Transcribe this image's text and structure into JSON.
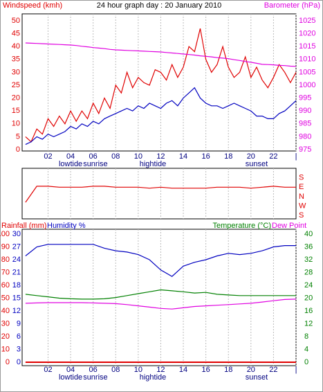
{
  "chart_data": [
    {
      "type": "line",
      "title": "24 hour graph day : 20 January 2010",
      "ylabel": "Windspeed (kmh)",
      "y2label": "Barometer (hPa)",
      "ycolor": "#e00000",
      "y2color": "#e000e0",
      "x": [
        0,
        0.5,
        1,
        1.5,
        2,
        2.5,
        3,
        3.5,
        4,
        4.5,
        5,
        5.5,
        6,
        6.5,
        7,
        7.5,
        8,
        8.5,
        9,
        9.5,
        10,
        10.5,
        11,
        11.5,
        12,
        12.5,
        13,
        13.5,
        14,
        14.5,
        15,
        15.5,
        16,
        16.5,
        17,
        17.5,
        18,
        18.5,
        19,
        19.5,
        20,
        20.5,
        21,
        21.5,
        22,
        22.5,
        23,
        23.5,
        24
      ],
      "xlim": [
        -0.3,
        24
      ],
      "xticks": [
        {
          "value": 2,
          "label": "02"
        },
        {
          "value": 4,
          "label": "04"
        },
        {
          "value": 6,
          "label": "06"
        },
        {
          "value": 8,
          "label": "08"
        },
        {
          "value": 10,
          "label": "10"
        },
        {
          "value": 12,
          "label": "12"
        },
        {
          "value": 14,
          "label": "14"
        },
        {
          "value": 16,
          "label": "16"
        },
        {
          "value": 18,
          "label": "18"
        },
        {
          "value": 20,
          "label": "20"
        },
        {
          "value": 22,
          "label": "22"
        },
        {
          "value": 24,
          "label": "|"
        }
      ],
      "ylim": [
        0,
        50
      ],
      "yticks": [
        0,
        5,
        10,
        15,
        20,
        25,
        30,
        35,
        40,
        45,
        50
      ],
      "y2lim": [
        975,
        1025
      ],
      "y2ticks": [
        975,
        980,
        985,
        990,
        995,
        1000,
        1005,
        1010,
        1015,
        1020,
        1025
      ],
      "grid": true,
      "annotations": [
        {
          "text": "lowtide",
          "x": 4
        },
        {
          "text": "sunrise",
          "x": 6.2
        },
        {
          "text": "hightide",
          "x": 11.3
        },
        {
          "text": "sunset",
          "x": 20.5
        }
      ],
      "series": [
        {
          "color": "#e00000",
          "values": [
            5,
            3,
            8,
            6,
            12,
            9,
            13,
            10,
            15,
            11,
            15,
            12,
            18,
            14,
            20,
            16,
            25,
            22,
            30,
            24,
            28,
            26,
            25,
            31,
            30,
            27,
            33,
            28,
            32,
            40,
            38,
            47,
            35,
            30,
            33,
            40,
            32,
            28,
            30,
            36,
            28,
            32,
            27,
            24,
            28,
            33,
            30,
            26,
            30
          ]
        },
        {
          "color": "#0000c0",
          "values": [
            2,
            3,
            5,
            4,
            6,
            5,
            6,
            7,
            9,
            8,
            10,
            9,
            11,
            10,
            12,
            13,
            14,
            15,
            16,
            15,
            17,
            16,
            18,
            17,
            16,
            18,
            19,
            17,
            20,
            22,
            24,
            20,
            18,
            17,
            17,
            16,
            17,
            18,
            17,
            16,
            15,
            13,
            13,
            12,
            12,
            14,
            15,
            17,
            19
          ]
        },
        {
          "color": "#e000e0",
          "axis": "y2",
          "values": [
            1016.4,
            1016.3,
            1016.2,
            1016.1,
            1016.0,
            1015.9,
            1015.8,
            1015.7,
            1015.6,
            1015.4,
            1015.1,
            1014.9,
            1014.6,
            1014.4,
            1014.2,
            1013.9,
            1013.7,
            1013.6,
            1013.5,
            1013.4,
            1013.3,
            1013.2,
            1013.1,
            1013.0,
            1012.9,
            1012.7,
            1012.5,
            1012.3,
            1012.1,
            1011.9,
            1011.7,
            1011.4,
            1011.2,
            1011.0,
            1010.7,
            1010.5,
            1010.3,
            1009.9,
            1009.6,
            1009.2,
            1008.9,
            1008.5,
            1008.1,
            1008.0,
            1007.9,
            1007.7,
            1007.6,
            1007.4,
            1007.3
          ]
        }
      ]
    },
    {
      "type": "line",
      "x": [
        0,
        1,
        2,
        3,
        4,
        5,
        6,
        7,
        8,
        9,
        10,
        11,
        12,
        13,
        14,
        15,
        16,
        17,
        18,
        19,
        20,
        21,
        22,
        23,
        24
      ],
      "xlim": [
        -0.3,
        24
      ],
      "xticks": [
        2,
        4,
        6,
        8,
        10,
        12,
        14,
        16,
        18,
        20,
        22
      ],
      "xtick_labels": false,
      "grid": true,
      "ylim": [
        -0.35,
        5
      ],
      "ycolor": "#e00000",
      "yticks": [
        {
          "value": 4,
          "label": "S"
        },
        {
          "value": 3,
          "label": "E"
        },
        {
          "value": 2,
          "label": "N"
        },
        {
          "value": 1,
          "label": "W"
        },
        {
          "value": 0,
          "label": "S"
        }
      ],
      "series": [
        {
          "color": "#e00000",
          "values": [
            1.4,
            3.1,
            3.1,
            3.0,
            3.0,
            3.0,
            3.1,
            3.1,
            3.0,
            3.0,
            3.0,
            2.9,
            3.0,
            2.9,
            2.9,
            2.9,
            2.9,
            3.0,
            3.0,
            3.0,
            2.9,
            3.0,
            3.1,
            3.0,
            3.0
          ]
        }
      ]
    },
    {
      "type": "line",
      "x": [
        0,
        1,
        2,
        3,
        4,
        5,
        6,
        7,
        8,
        9,
        10,
        11,
        12,
        13,
        14,
        15,
        16,
        17,
        18,
        19,
        20,
        21,
        22,
        23,
        24
      ],
      "xlim": [
        -0.3,
        24
      ],
      "xticks": [
        {
          "value": 2,
          "label": "02"
        },
        {
          "value": 4,
          "label": "04"
        },
        {
          "value": 6,
          "label": "06"
        },
        {
          "value": 8,
          "label": "08"
        },
        {
          "value": 10,
          "label": "10"
        },
        {
          "value": 12,
          "label": "12"
        },
        {
          "value": 14,
          "label": "14"
        },
        {
          "value": 16,
          "label": "16"
        },
        {
          "value": 18,
          "label": "18"
        },
        {
          "value": 20,
          "label": "20"
        },
        {
          "value": 22,
          "label": "22"
        },
        {
          "value": 24,
          "label": "|"
        }
      ],
      "grid": true,
      "annotations": [
        {
          "text": "lowtide",
          "x": 4
        },
        {
          "text": "sunrise",
          "x": 6.2
        },
        {
          "text": "hightide",
          "x": 11.3
        },
        {
          "text": "sunset",
          "x": 20.5
        }
      ],
      "ylim": [
        0,
        100
      ],
      "yticks": [
        0,
        10,
        20,
        30,
        40,
        50,
        60,
        70,
        80,
        90,
        100
      ],
      "ycolor": "#e00000",
      "y3lim": [
        0,
        30
      ],
      "y3ticks": [
        0,
        3,
        6,
        9,
        12,
        15,
        18,
        21,
        24,
        27,
        30
      ],
      "y3color": "#0000c0",
      "y2lim": [
        0,
        40
      ],
      "y2ticks": [
        0,
        4,
        8,
        12,
        16,
        20,
        24,
        28,
        32,
        36,
        40
      ],
      "y2color": "#008000",
      "series": [
        {
          "name": "Rainfall (mm)",
          "color": "#e00000",
          "axis": "y3",
          "values": [
            0,
            0,
            0,
            0,
            0,
            0,
            0,
            0,
            0,
            0,
            0,
            0,
            0,
            0,
            0,
            0,
            0,
            0,
            0,
            0,
            0,
            0,
            0,
            0,
            0
          ]
        },
        {
          "name": "Humidity %",
          "color": "#0000c0",
          "values": [
            83,
            90,
            92,
            92,
            92,
            92,
            92,
            89,
            87,
            86,
            84,
            80,
            72,
            67,
            75,
            78,
            80,
            83,
            85,
            84,
            85,
            87,
            90,
            91,
            91
          ]
        },
        {
          "name": "Temperature (°C)",
          "color": "#008000",
          "axis": "y2",
          "values": [
            21.2,
            20.8,
            20.4,
            20.0,
            19.8,
            19.7,
            19.7,
            19.8,
            20.2,
            20.8,
            21.4,
            22.0,
            22.6,
            22.3,
            22.0,
            21.6,
            21.8,
            21.2,
            21.0,
            20.8,
            20.8,
            20.8,
            20.8,
            20.8,
            20.8
          ]
        },
        {
          "name": "Dew Point",
          "color": "#e000e0",
          "axis": "y2",
          "values": [
            18.4,
            18.5,
            18.6,
            18.6,
            18.6,
            18.6,
            18.5,
            18.4,
            18.3,
            18.0,
            17.6,
            17.2,
            16.8,
            16.6,
            17.0,
            17.4,
            17.6,
            17.8,
            18.0,
            18.2,
            18.4,
            18.8,
            19.2,
            19.6,
            19.7
          ]
        }
      ]
    }
  ]
}
